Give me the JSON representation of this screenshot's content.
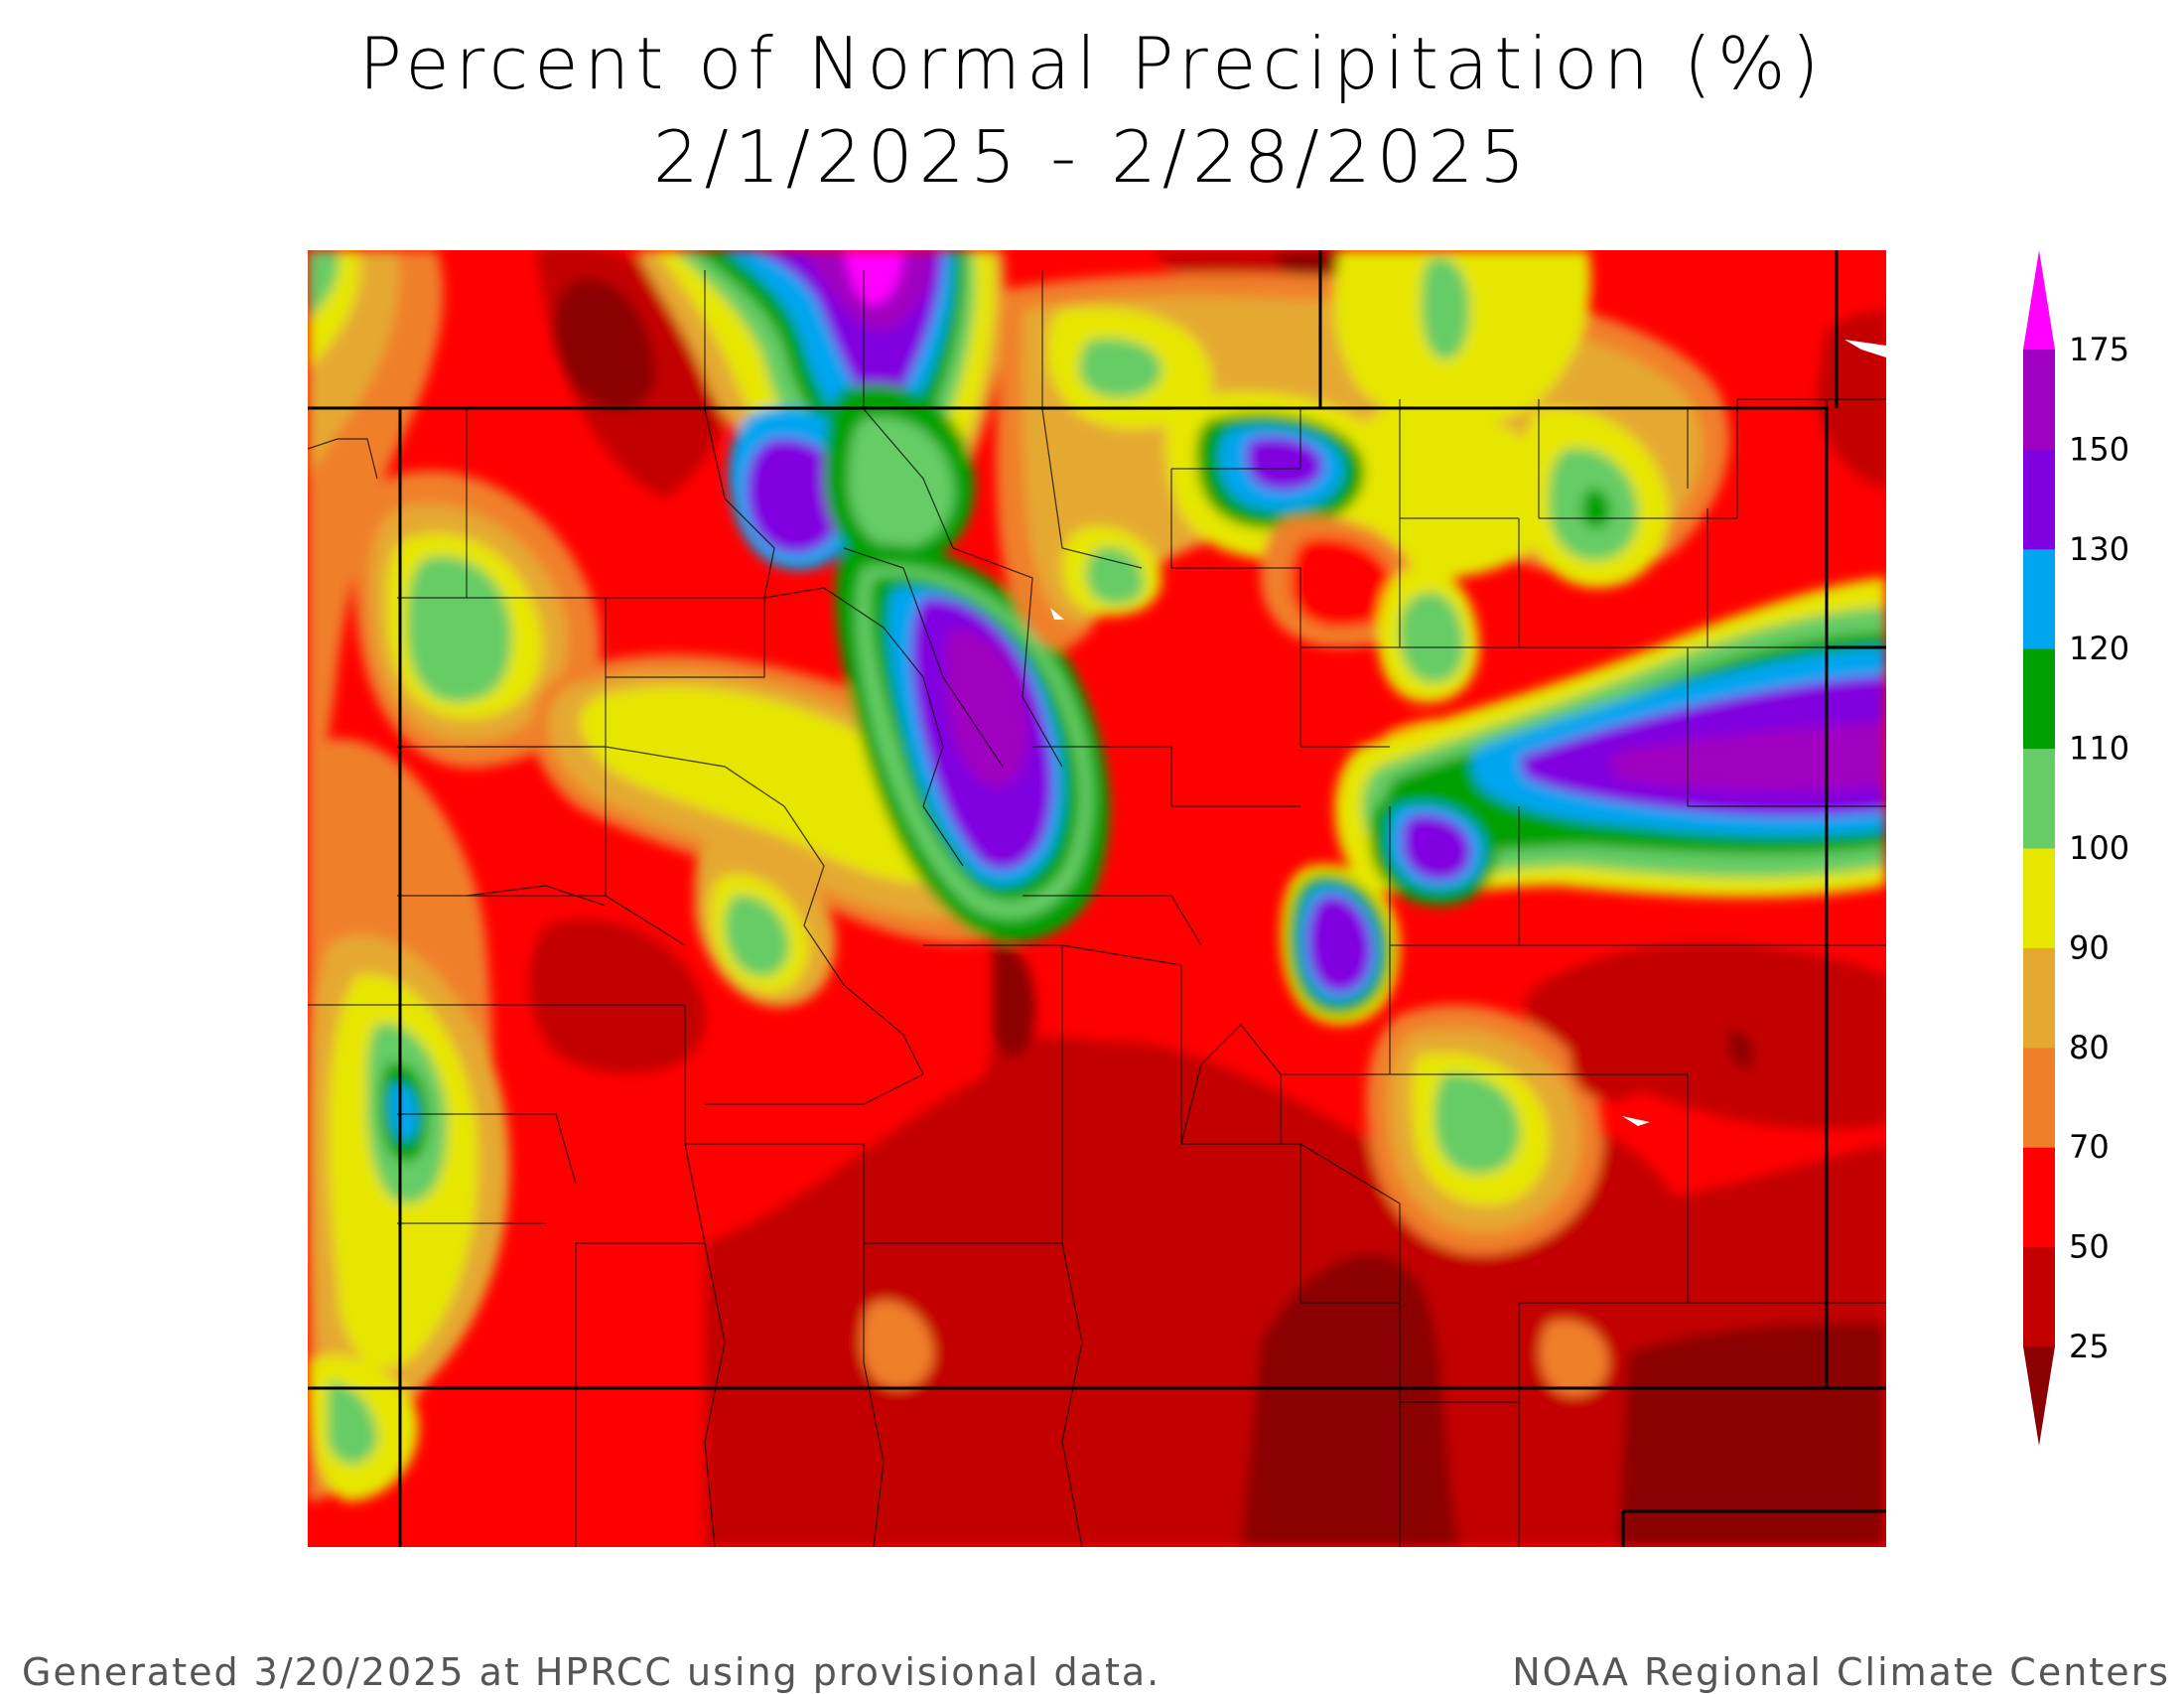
{
  "title": {
    "line1": "Percent of Normal Precipitation (%)",
    "line2": "2/1/2025 - 2/28/2025"
  },
  "legend": {
    "levels": [
      "25",
      "50",
      "70",
      "80",
      "90",
      "100",
      "110",
      "120",
      "130",
      "150",
      "175"
    ],
    "colors": [
      "#8b0000",
      "#c20000",
      "#ff0000",
      "#f07f2a",
      "#e5a932",
      "#e6e600",
      "#66cc66",
      "#00a000",
      "#00a5f0",
      "#8000e0",
      "#a000c0",
      "#ff00ff"
    ]
  },
  "footer": {
    "left": "Generated 3/20/2025 at HPRCC using provisional data.",
    "right": "NOAA Regional Climate Centers"
  }
}
